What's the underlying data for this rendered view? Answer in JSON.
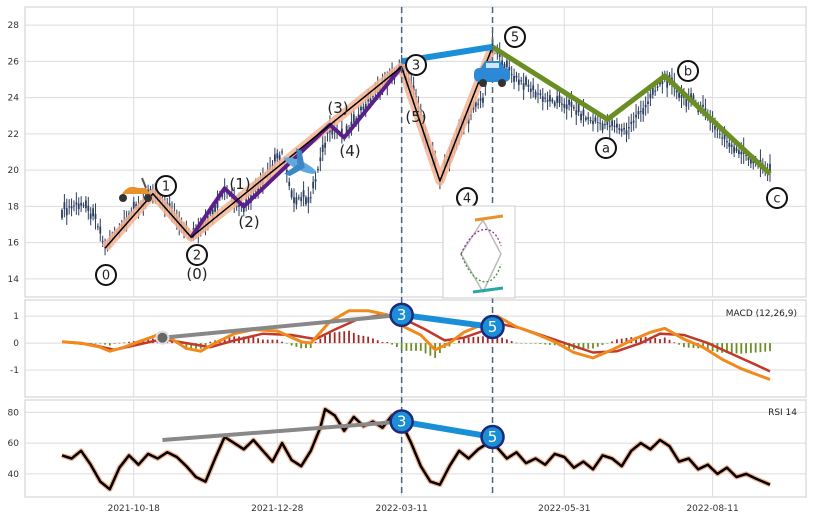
{
  "chart_data": [
    {
      "type": "candlestick",
      "panel": "price",
      "ylim": [
        13,
        29
      ],
      "yticks": [
        14,
        16,
        18,
        20,
        22,
        24,
        26,
        28
      ],
      "xticks": [
        "2021-10-18",
        "2021-12-28",
        "2022-03-11",
        "2022-05-31",
        "2022-08-11"
      ],
      "price_path": [
        [
          0,
          17.8
        ],
        [
          8,
          18.2
        ],
        [
          14,
          17.3
        ],
        [
          18,
          15.7
        ],
        [
          28,
          17.6
        ],
        [
          38,
          18.7
        ],
        [
          46,
          17.8
        ],
        [
          54,
          16.3
        ],
        [
          62,
          17.6
        ],
        [
          68,
          19.0
        ],
        [
          76,
          18.0
        ],
        [
          84,
          19.6
        ],
        [
          92,
          21.0
        ],
        [
          96,
          18.5
        ],
        [
          104,
          18.5
        ],
        [
          112,
          22.5
        ],
        [
          118,
          21.8
        ],
        [
          126,
          23.5
        ],
        [
          134,
          24.7
        ],
        [
          142,
          25.7
        ],
        [
          148,
          24.0
        ],
        [
          152,
          22.0
        ],
        [
          158,
          19.4
        ],
        [
          164,
          21.5
        ],
        [
          170,
          23.0
        ],
        [
          176,
          24.0
        ],
        [
          180,
          26.8
        ],
        [
          188,
          25.3
        ],
        [
          196,
          24.5
        ],
        [
          204,
          23.8
        ],
        [
          212,
          23.6
        ],
        [
          220,
          22.8
        ],
        [
          228,
          22.5
        ],
        [
          236,
          22.2
        ],
        [
          244,
          23.6
        ],
        [
          252,
          25.1
        ],
        [
          260,
          24.0
        ],
        [
          268,
          23.5
        ],
        [
          276,
          21.8
        ],
        [
          284,
          21.0
        ],
        [
          292,
          20.2
        ],
        [
          296,
          19.9
        ]
      ],
      "waves": [
        {
          "name": "impulse",
          "color": "#000000",
          "points": [
            [
              18,
              15.7
            ],
            [
              38,
              18.7
            ],
            [
              54,
              16.3
            ],
            [
              142,
              25.7
            ],
            [
              158,
              19.4
            ],
            [
              180,
              26.8
            ]
          ],
          "labels": [
            "0",
            "1",
            "2",
            "3",
            "4",
            "5"
          ]
        },
        {
          "name": "sub-wave",
          "color": "#5b1f8a",
          "points": [
            [
              54,
              16.3
            ],
            [
              68,
              19.0
            ],
            [
              76,
              18.0
            ],
            [
              112,
              22.5
            ],
            [
              118,
              21.8
            ],
            [
              142,
              25.7
            ]
          ],
          "labels": [
            "(0)",
            "(1)",
            "(2)",
            "(3)",
            "(4)",
            "(5)"
          ]
        },
        {
          "name": "correction",
          "color": "#6b8e23",
          "points": [
            [
              180,
              26.8
            ],
            [
              228,
              22.8
            ],
            [
              252,
              25.2
            ],
            [
              296,
              19.8
            ]
          ],
          "labels": [
            "a",
            "b",
            "c"
          ]
        }
      ],
      "highlight": {
        "color": "#1a8fd8",
        "from": [
          142,
          26.0
        ],
        "to": [
          180,
          26.8
        ]
      }
    },
    {
      "type": "line",
      "panel": "macd",
      "title": "MACD (12,26,9)",
      "ylim": [
        -2.0,
        1.6
      ],
      "yticks": [
        -1,
        0,
        1
      ],
      "series_colors": {
        "macd": "#f08a1c",
        "signal": "#c0392b",
        "hist_pos": "#a52a2a",
        "hist_neg": "#6b8e23"
      },
      "macd": [
        [
          0,
          0.05
        ],
        [
          8,
          0.0
        ],
        [
          16,
          -0.15
        ],
        [
          20,
          -0.3
        ],
        [
          26,
          -0.15
        ],
        [
          32,
          0.05
        ],
        [
          40,
          0.3
        ],
        [
          46,
          0.15
        ],
        [
          52,
          -0.2
        ],
        [
          58,
          -0.3
        ],
        [
          64,
          0.0
        ],
        [
          72,
          0.35
        ],
        [
          80,
          0.5
        ],
        [
          90,
          0.45
        ],
        [
          100,
          0.05
        ],
        [
          104,
          0.0
        ],
        [
          112,
          0.8
        ],
        [
          120,
          1.2
        ],
        [
          128,
          1.2
        ],
        [
          136,
          1.05
        ],
        [
          142,
          0.65
        ],
        [
          150,
          0.3
        ],
        [
          156,
          -0.25
        ],
        [
          162,
          0.0
        ],
        [
          168,
          0.4
        ],
        [
          176,
          0.7
        ],
        [
          182,
          1.0
        ],
        [
          190,
          0.6
        ],
        [
          198,
          0.35
        ],
        [
          206,
          0.05
        ],
        [
          214,
          -0.35
        ],
        [
          222,
          -0.55
        ],
        [
          230,
          -0.25
        ],
        [
          238,
          0.1
        ],
        [
          246,
          0.4
        ],
        [
          252,
          0.55
        ],
        [
          260,
          0.15
        ],
        [
          268,
          -0.15
        ],
        [
          276,
          -0.6
        ],
        [
          284,
          -0.95
        ],
        [
          290,
          -1.15
        ],
        [
          296,
          -1.35
        ]
      ],
      "signal": [
        [
          0,
          0.05
        ],
        [
          12,
          -0.05
        ],
        [
          22,
          -0.25
        ],
        [
          32,
          -0.05
        ],
        [
          42,
          0.15
        ],
        [
          52,
          0.0
        ],
        [
          62,
          -0.15
        ],
        [
          72,
          0.1
        ],
        [
          84,
          0.35
        ],
        [
          96,
          0.3
        ],
        [
          106,
          0.15
        ],
        [
          114,
          0.5
        ],
        [
          124,
          0.9
        ],
        [
          134,
          1.05
        ],
        [
          144,
          0.85
        ],
        [
          152,
          0.5
        ],
        [
          160,
          0.1
        ],
        [
          168,
          0.2
        ],
        [
          176,
          0.45
        ],
        [
          184,
          0.7
        ],
        [
          192,
          0.55
        ],
        [
          202,
          0.25
        ],
        [
          212,
          -0.05
        ],
        [
          222,
          -0.35
        ],
        [
          232,
          -0.3
        ],
        [
          242,
          0.0
        ],
        [
          250,
          0.35
        ],
        [
          260,
          0.3
        ],
        [
          270,
          0.0
        ],
        [
          280,
          -0.4
        ],
        [
          290,
          -0.8
        ],
        [
          296,
          -1.05
        ]
      ],
      "divergence": {
        "from": [
          142,
          1.05
        ],
        "to": [
          180,
          0.6
        ],
        "labels": [
          "3",
          "5"
        ],
        "ref_from": [
          42,
          0.2
        ],
        "ref_to": [
          142,
          1.05
        ]
      }
    },
    {
      "type": "line",
      "panel": "rsi",
      "title": "RSI 14",
      "ylim": [
        25,
        88
      ],
      "yticks": [
        40,
        60,
        80
      ],
      "rsi": [
        [
          0,
          52
        ],
        [
          4,
          50
        ],
        [
          8,
          55
        ],
        [
          12,
          46
        ],
        [
          16,
          35
        ],
        [
          20,
          30
        ],
        [
          24,
          44
        ],
        [
          28,
          52
        ],
        [
          32,
          46
        ],
        [
          36,
          53
        ],
        [
          40,
          50
        ],
        [
          44,
          54
        ],
        [
          48,
          51
        ],
        [
          52,
          45
        ],
        [
          56,
          38
        ],
        [
          60,
          35
        ],
        [
          64,
          50
        ],
        [
          68,
          64
        ],
        [
          72,
          60
        ],
        [
          76,
          56
        ],
        [
          80,
          62
        ],
        [
          84,
          55
        ],
        [
          88,
          48
        ],
        [
          92,
          60
        ],
        [
          96,
          49
        ],
        [
          100,
          45
        ],
        [
          104,
          55
        ],
        [
          108,
          70
        ],
        [
          110,
          82
        ],
        [
          114,
          78
        ],
        [
          118,
          68
        ],
        [
          122,
          77
        ],
        [
          126,
          71
        ],
        [
          130,
          74
        ],
        [
          134,
          70
        ],
        [
          138,
          78
        ],
        [
          142,
          73
        ],
        [
          146,
          60
        ],
        [
          150,
          45
        ],
        [
          154,
          35
        ],
        [
          158,
          33
        ],
        [
          162,
          45
        ],
        [
          166,
          55
        ],
        [
          170,
          50
        ],
        [
          174,
          56
        ],
        [
          178,
          60
        ],
        [
          182,
          57
        ],
        [
          186,
          50
        ],
        [
          190,
          54
        ],
        [
          194,
          47
        ],
        [
          198,
          50
        ],
        [
          202,
          46
        ],
        [
          206,
          53
        ],
        [
          210,
          51
        ],
        [
          214,
          44
        ],
        [
          218,
          48
        ],
        [
          222,
          43
        ],
        [
          226,
          52
        ],
        [
          230,
          50
        ],
        [
          234,
          45
        ],
        [
          238,
          55
        ],
        [
          242,
          60
        ],
        [
          246,
          56
        ],
        [
          250,
          62
        ],
        [
          254,
          58
        ],
        [
          258,
          48
        ],
        [
          262,
          50
        ],
        [
          266,
          43
        ],
        [
          270,
          46
        ],
        [
          274,
          40
        ],
        [
          278,
          44
        ],
        [
          282,
          38
        ],
        [
          286,
          40
        ],
        [
          290,
          37
        ],
        [
          296,
          33
        ]
      ],
      "divergence": {
        "from": [
          142,
          74
        ],
        "to": [
          180,
          64
        ],
        "labels": [
          "3",
          "5"
        ],
        "ref_from": [
          42,
          62
        ],
        "ref_to": [
          142,
          74
        ]
      }
    }
  ]
}
